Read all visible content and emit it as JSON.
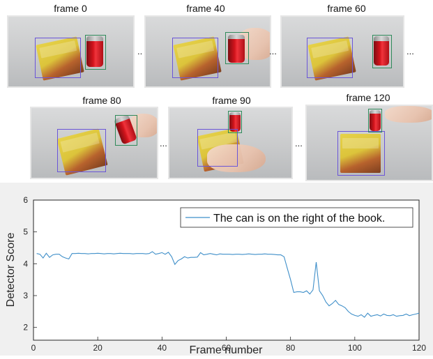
{
  "frames": [
    {
      "label": "frame 0"
    },
    {
      "label": "frame 40"
    },
    {
      "label": "frame 60"
    },
    {
      "label": "frame 80"
    },
    {
      "label": "frame 90"
    },
    {
      "label": "frame 120"
    }
  ],
  "separators": [
    "..",
    "...",
    "...",
    "...",
    "..."
  ],
  "colors": {
    "series": "#3f8fc9",
    "book_box": "#6a55d8",
    "can_box": "#2f8a5a",
    "panel_bg": "#f0f0f0"
  },
  "chart_data": {
    "type": "line",
    "xlabel": "Frame number",
    "ylabel": "Detector Score",
    "xlim": [
      0,
      120
    ],
    "ylim": [
      1.6,
      6
    ],
    "xticks": [
      0,
      20,
      40,
      60,
      80,
      100,
      120
    ],
    "yticks": [
      2,
      3,
      4,
      5,
      6
    ],
    "grid": false,
    "legend_position": "top-right",
    "series": [
      {
        "name": "The can is on the right of the book.",
        "x": [
          1,
          2,
          3,
          4,
          5,
          6,
          7,
          8,
          9,
          10,
          11,
          12,
          13,
          14,
          15,
          16,
          17,
          18,
          19,
          20,
          21,
          22,
          23,
          24,
          25,
          26,
          27,
          28,
          29,
          30,
          31,
          32,
          33,
          34,
          35,
          36,
          37,
          38,
          39,
          40,
          41,
          42,
          43,
          44,
          45,
          46,
          47,
          48,
          49,
          50,
          51,
          52,
          53,
          54,
          55,
          56,
          57,
          58,
          59,
          60,
          61,
          62,
          63,
          64,
          65,
          66,
          67,
          68,
          69,
          70,
          71,
          72,
          73,
          74,
          75,
          76,
          77,
          78,
          79,
          80,
          81,
          82,
          83,
          84,
          85,
          86,
          87,
          88,
          89,
          90,
          91,
          92,
          93,
          94,
          95,
          96,
          97,
          98,
          99,
          100,
          101,
          102,
          103,
          104,
          105,
          106,
          107,
          108,
          109,
          110,
          111,
          112,
          113,
          114,
          115,
          116,
          117,
          118,
          119,
          120
        ],
        "y": [
          4.32,
          4.3,
          4.18,
          4.33,
          4.2,
          4.28,
          4.3,
          4.3,
          4.22,
          4.18,
          4.15,
          4.32,
          4.32,
          4.33,
          4.32,
          4.32,
          4.31,
          4.32,
          4.32,
          4.33,
          4.32,
          4.31,
          4.32,
          4.32,
          4.31,
          4.32,
          4.33,
          4.32,
          4.32,
          4.32,
          4.31,
          4.32,
          4.32,
          4.32,
          4.31,
          4.32,
          4.38,
          4.3,
          4.32,
          4.35,
          4.3,
          4.36,
          4.22,
          3.98,
          4.1,
          4.15,
          4.22,
          4.18,
          4.2,
          4.2,
          4.21,
          4.35,
          4.28,
          4.3,
          4.32,
          4.3,
          4.28,
          4.31,
          4.3,
          4.3,
          4.3,
          4.29,
          4.3,
          4.3,
          4.29,
          4.3,
          4.31,
          4.3,
          4.29,
          4.3,
          4.3,
          4.31,
          4.3,
          4.3,
          4.29,
          4.28,
          4.28,
          4.22,
          3.85,
          3.5,
          3.1,
          3.12,
          3.12,
          3.1,
          3.15,
          3.05,
          3.18,
          4.05,
          3.15,
          3.0,
          2.8,
          2.68,
          2.75,
          2.85,
          2.72,
          2.68,
          2.62,
          2.5,
          2.42,
          2.38,
          2.35,
          2.4,
          2.32,
          2.45,
          2.35,
          2.38,
          2.4,
          2.36,
          2.42,
          2.38,
          2.37,
          2.4,
          2.35,
          2.37,
          2.38,
          2.42,
          2.37,
          2.4,
          2.42,
          2.45
        ]
      }
    ]
  }
}
